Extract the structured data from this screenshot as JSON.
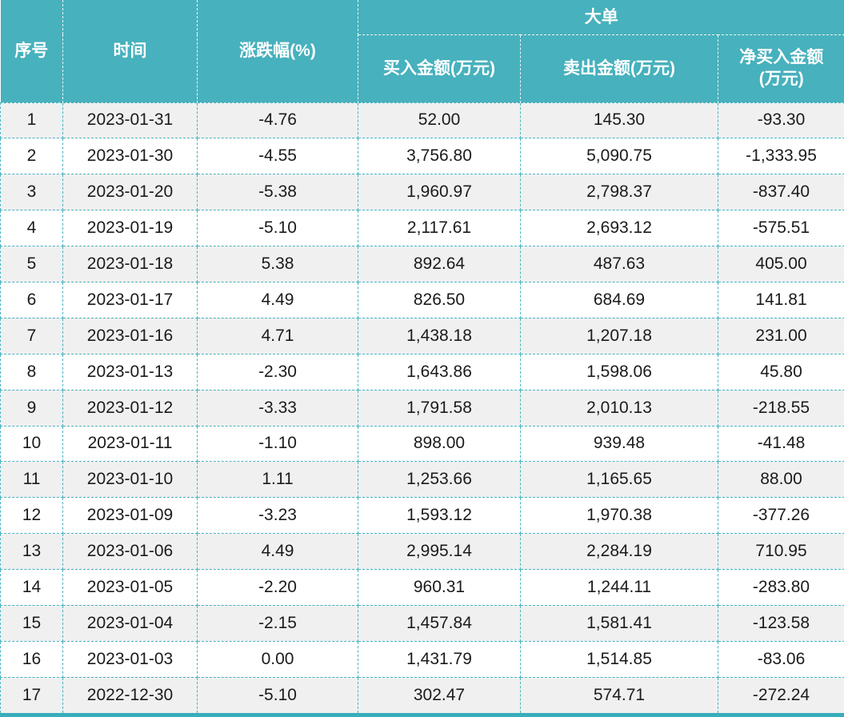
{
  "colors": {
    "header_bg": "#47b1bd",
    "header_text": "#ffffff",
    "row_odd_bg": "#f0f0f0",
    "row_even_bg": "#ffffff",
    "body_border": "#45b2c0",
    "bottom_bar": "#38adbb",
    "body_text": "#1b1b1b"
  },
  "header_display": {
    "net_line1": "净买入金额",
    "net_line2": "(万元)"
  },
  "chart_data": {
    "type": "table",
    "group_header": {
      "label": "大单",
      "spans_columns": [
        3,
        4,
        5
      ]
    },
    "column_headers": [
      "序号",
      "时间",
      "涨跌幅(%)",
      "买入金额(万元)",
      "卖出金额(万元)",
      "净买入金额(万元)"
    ],
    "rows": [
      [
        "1",
        "2023-01-31",
        "-4.76",
        "52.00",
        "145.30",
        "-93.30"
      ],
      [
        "2",
        "2023-01-30",
        "-4.55",
        "3,756.80",
        "5,090.75",
        "-1,333.95"
      ],
      [
        "3",
        "2023-01-20",
        "-5.38",
        "1,960.97",
        "2,798.37",
        "-837.40"
      ],
      [
        "4",
        "2023-01-19",
        "-5.10",
        "2,117.61",
        "2,693.12",
        "-575.51"
      ],
      [
        "5",
        "2023-01-18",
        "5.38",
        "892.64",
        "487.63",
        "405.00"
      ],
      [
        "6",
        "2023-01-17",
        "4.49",
        "826.50",
        "684.69",
        "141.81"
      ],
      [
        "7",
        "2023-01-16",
        "4.71",
        "1,438.18",
        "1,207.18",
        "231.00"
      ],
      [
        "8",
        "2023-01-13",
        "-2.30",
        "1,643.86",
        "1,598.06",
        "45.80"
      ],
      [
        "9",
        "2023-01-12",
        "-3.33",
        "1,791.58",
        "2,010.13",
        "-218.55"
      ],
      [
        "10",
        "2023-01-11",
        "-1.10",
        "898.00",
        "939.48",
        "-41.48"
      ],
      [
        "11",
        "2023-01-10",
        "1.11",
        "1,253.66",
        "1,165.65",
        "88.00"
      ],
      [
        "12",
        "2023-01-09",
        "-3.23",
        "1,593.12",
        "1,970.38",
        "-377.26"
      ],
      [
        "13",
        "2023-01-06",
        "4.49",
        "2,995.14",
        "2,284.19",
        "710.95"
      ],
      [
        "14",
        "2023-01-05",
        "-2.20",
        "960.31",
        "1,244.11",
        "-283.80"
      ],
      [
        "15",
        "2023-01-04",
        "-2.15",
        "1,457.84",
        "1,581.41",
        "-123.58"
      ],
      [
        "16",
        "2023-01-03",
        "0.00",
        "1,431.79",
        "1,514.85",
        "-83.06"
      ],
      [
        "17",
        "2022-12-30",
        "-5.10",
        "302.47",
        "574.71",
        "-272.24"
      ]
    ]
  }
}
